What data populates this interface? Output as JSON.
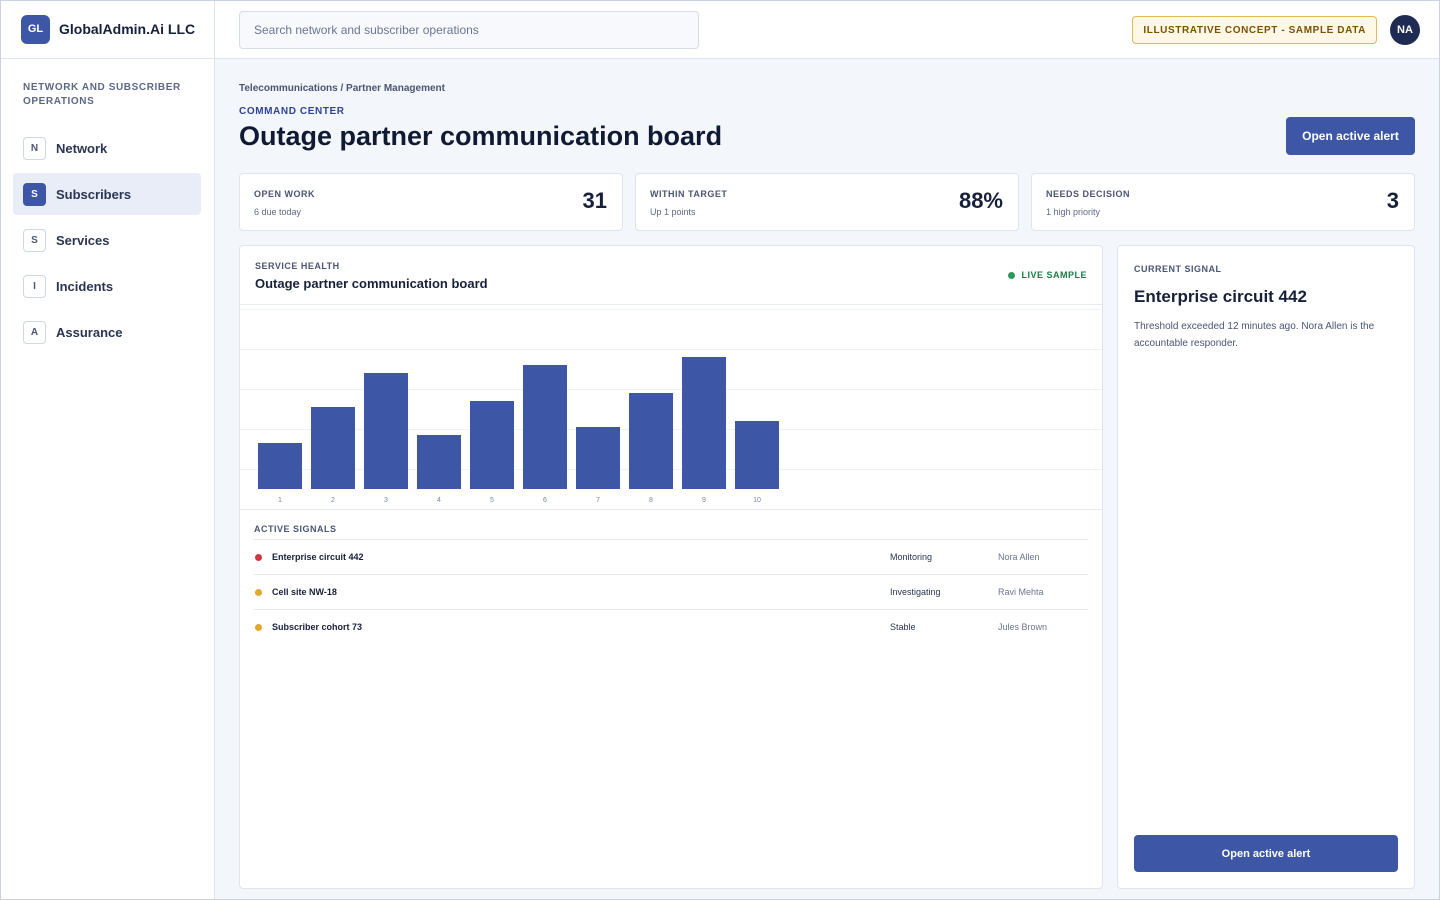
{
  "brand": {
    "logo": "GL",
    "name": "GlobalAdmin.Ai LLC"
  },
  "sidebar": {
    "section_title": "Network and Subscriber Operations",
    "items": [
      {
        "badge": "N",
        "label": "Network",
        "active": false
      },
      {
        "badge": "S",
        "label": "Subscribers",
        "active": true
      },
      {
        "badge": "S",
        "label": "Services",
        "active": false
      },
      {
        "badge": "I",
        "label": "Incidents",
        "active": false
      },
      {
        "badge": "A",
        "label": "Assurance",
        "active": false
      }
    ]
  },
  "topbar": {
    "search_placeholder": "Search network and subscriber operations",
    "concept_badge": "Illustrative concept - sample data",
    "avatar": "NA"
  },
  "header": {
    "breadcrumb": "Telecommunications / Partner Management",
    "eyebrow": "Command center",
    "title": "Outage partner communication board",
    "action_label": "Open active alert"
  },
  "stats": [
    {
      "label": "Open work",
      "sub": "6 due today",
      "value": "31"
    },
    {
      "label": "Within target",
      "sub": "Up 1 points",
      "value": "88%"
    },
    {
      "label": "Needs decision",
      "sub": "1 high priority",
      "value": "3"
    }
  ],
  "health": {
    "eyebrow": "Service health",
    "title": "Outage partner communication board",
    "live_label": "Live sample"
  },
  "chart_data": {
    "type": "bar",
    "categories": [
      "1",
      "2",
      "3",
      "4",
      "5",
      "6",
      "7",
      "8",
      "9",
      "10"
    ],
    "values": [
      23,
      41,
      58,
      27,
      44,
      62,
      31,
      48,
      66,
      34
    ],
    "ylim": [
      0,
      90
    ],
    "grid": true,
    "bar_color": "#3e56a6"
  },
  "signals": {
    "eyebrow": "Active signals",
    "rows": [
      {
        "name": "Enterprise circuit 442",
        "status": "Monitoring",
        "owner": "Nora Allen",
        "dot_color": "#c9393f"
      },
      {
        "name": "Cell site NW-18",
        "status": "Investigating",
        "owner": "Ravi Mehta",
        "dot_color": "#e0a82e"
      },
      {
        "name": "Subscriber cohort 73",
        "status": "Stable",
        "owner": "Jules Brown",
        "dot_color": "#e0a82e"
      }
    ]
  },
  "current_signal": {
    "eyebrow": "Current signal",
    "title": "Enterprise circuit 442",
    "description": "Threshold exceeded 12 minutes ago. Nora Allen is the accountable responder.",
    "action_label": "Open active alert"
  },
  "colors": {
    "accent": "#3e56a6",
    "live": "#2e9a5a"
  }
}
